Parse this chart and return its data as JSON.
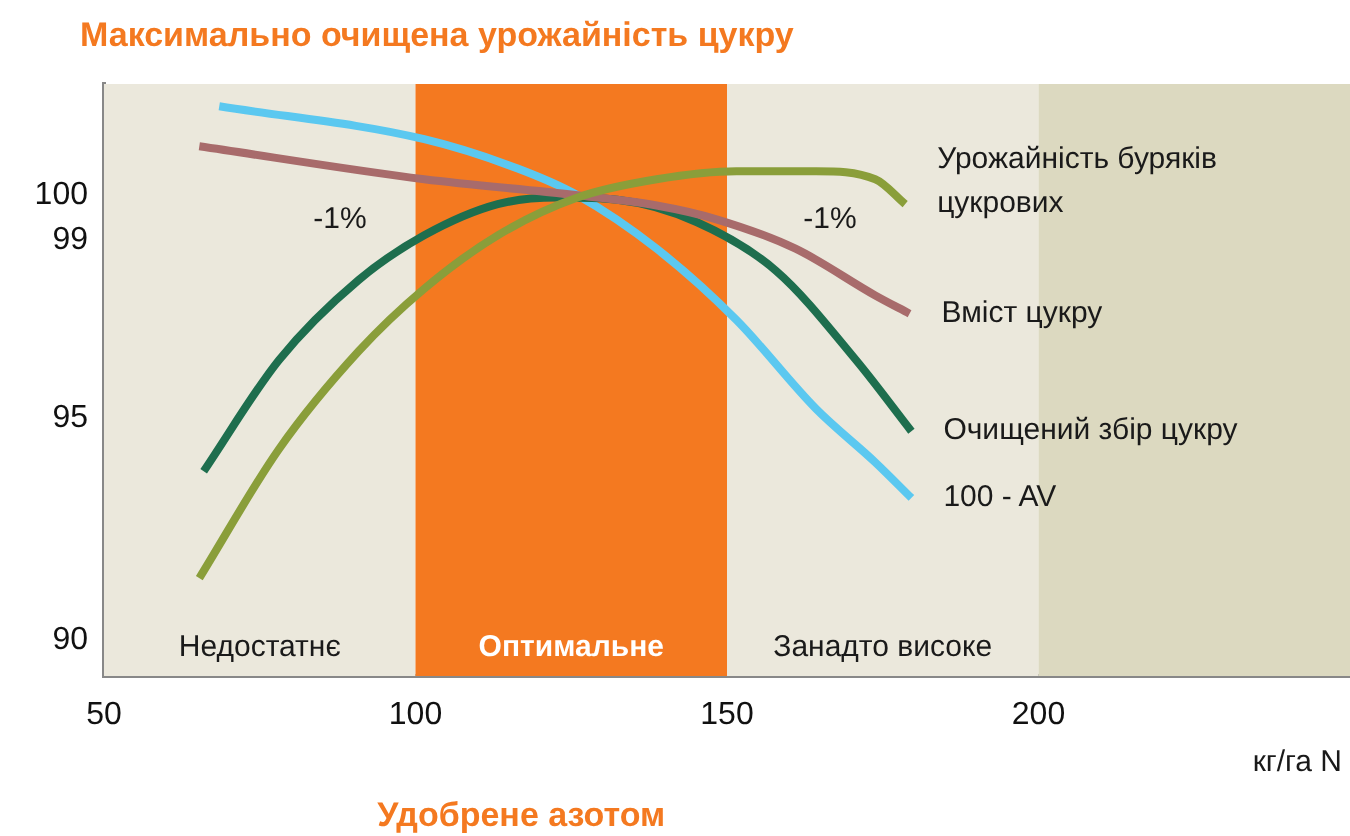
{
  "chart_data": {
    "type": "line",
    "title": "Максимально очищена урожайність цукру",
    "xlabel": "Удобрене азотом",
    "xlim": [
      50,
      250
    ],
    "xticks": [
      50,
      100,
      150,
      200
    ],
    "ylim": [
      89.2,
      102.5
    ],
    "yticks": [
      90,
      95,
      99,
      100
    ],
    "grid": false,
    "legend": false,
    "marker": "none",
    "line_style": "solid",
    "series": [
      {
        "name": "Урожайність буряків цукрових",
        "color": "#8a9e3a",
        "x": [
          65.3,
          78.1,
          90.9,
          101.4,
          113.2,
          126,
          138.7,
          151.5,
          164.3,
          173.8,
          178.6
        ],
        "values": [
          91.4,
          94.3,
          96.5,
          97.9,
          99.1,
          99.95,
          100.36,
          100.54,
          100.54,
          100.36,
          99.8
        ]
      },
      {
        "name": "Вміст цукру",
        "color": "#a86b6b",
        "x": [
          65.3,
          101.4,
          126,
          138.7,
          148.3,
          161,
          173.8,
          179.3
        ],
        "values": [
          101.1,
          100.36,
          100,
          99.77,
          99.46,
          98.8,
          97.75,
          97.34
        ]
      },
      {
        "name": "Очищений збір цукру",
        "color": "#1e6e4e",
        "x": [
          66,
          78.1,
          90.9,
          101.4,
          113.2,
          122.8,
          132.4,
          145.1,
          157.9,
          170.7,
          179.6
        ],
        "values": [
          93.8,
          96.3,
          98.1,
          99.1,
          99.8,
          99.95,
          99.9,
          99.4,
          98.3,
          96.3,
          94.7
        ]
      },
      {
        "name": "100 - AV",
        "color": "#5bc8f0",
        "x": [
          68.5,
          101.4,
          116.4,
          126,
          138.7,
          151.5,
          164.3,
          173.8,
          179.6
        ],
        "values": [
          102.0,
          101.26,
          100.6,
          100,
          98.8,
          97.2,
          95.2,
          94.0,
          93.2
        ]
      }
    ],
    "bands": [
      {
        "axis": "x",
        "from": 50,
        "to": 100,
        "label": "Недостатнє",
        "color": "#ebe8dc"
      },
      {
        "axis": "x",
        "from": 100,
        "to": 150,
        "label": "Оптимальне",
        "color": "#f47920"
      },
      {
        "axis": "x",
        "from": 150,
        "to": 200,
        "label": "Занадто високе",
        "color": "#ebe8dc"
      },
      {
        "axis": "x",
        "from": 200,
        "to": 250,
        "label": null,
        "color": "#dcd9c0"
      }
    ],
    "annotations": [
      "-1%",
      "-1%",
      "кг/га N"
    ]
  }
}
